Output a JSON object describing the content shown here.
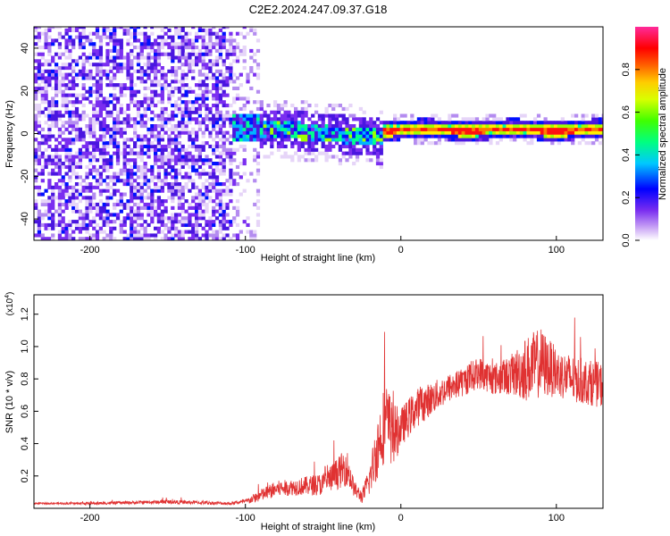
{
  "title": "C2E2.2024.247.09.37.G18",
  "colors": {
    "snr_line": "#e03232",
    "colormap": [
      "#ffffff",
      "#d9c2f5",
      "#8a3cf0",
      "#5a1ee6",
      "#0000ff",
      "#00bfff",
      "#00ff80",
      "#b0ff00",
      "#ffff00",
      "#ff8000",
      "#ff0000",
      "#ff00a0"
    ]
  },
  "chart_data": [
    {
      "type": "heatmap",
      "xlabel": "Height of straight line (km)",
      "ylabel": "Frequency (Hz)",
      "xlim": [
        -236,
        130
      ],
      "ylim": [
        -50,
        50
      ],
      "x_ticks": [
        -200,
        -100,
        0,
        100
      ],
      "y_ticks": [
        -40,
        -20,
        0,
        20,
        40
      ],
      "colorbar": {
        "label": "Normalized spectral amplitude",
        "range": [
          0,
          1
        ],
        "ticks": [
          "0.0",
          "0.2",
          "0.4",
          "0.6",
          "0.8"
        ]
      },
      "description_regions": [
        {
          "x_range": [
            -236,
            -110
          ],
          "freq_range": [
            -50,
            50
          ],
          "amplitude": "low, noise (0.0-0.15)"
        },
        {
          "x_range": [
            -110,
            -12
          ],
          "freq_range": [
            -10,
            12
          ],
          "amplitude": "medium (0.2-0.45), center near 0 Hz"
        },
        {
          "x_range": [
            -12,
            130
          ],
          "freq_range": [
            -3,
            3
          ],
          "amplitude": "high (0.8-1.0), center near 0 Hz"
        }
      ]
    },
    {
      "type": "line",
      "xlabel": "Height of straight line (km)",
      "ylabel": "SNR (10 * v/v)",
      "y_multiplier": "(x10",
      "y_multiplier_exp": "4",
      "y_multiplier_close": ")",
      "xlim": [
        -236,
        130
      ],
      "ylim": [
        0,
        1.32
      ],
      "x_ticks": [
        -200,
        -100,
        0,
        100
      ],
      "y_ticks": [
        "0.2",
        "0.4",
        "0.6",
        "0.8",
        "1.0",
        "1.2"
      ],
      "series": [
        {
          "x": [
            -236,
            -200,
            -150,
            -110,
            -100,
            -90,
            -80,
            -70,
            -60,
            -50,
            -40,
            -35,
            -30,
            -25,
            -20,
            -15,
            -10,
            -5,
            0,
            10,
            20,
            30,
            40,
            50,
            60,
            70,
            80,
            90,
            100,
            110,
            120,
            130
          ],
          "values": [
            0.03,
            0.03,
            0.04,
            0.03,
            0.04,
            0.08,
            0.12,
            0.13,
            0.14,
            0.15,
            0.22,
            0.26,
            0.12,
            0.07,
            0.18,
            0.38,
            0.55,
            0.45,
            0.5,
            0.62,
            0.68,
            0.74,
            0.78,
            0.84,
            0.8,
            0.82,
            0.86,
            0.9,
            0.84,
            0.8,
            0.78,
            0.76
          ],
          "noise": [
            0.005,
            0.008,
            0.012,
            0.01,
            0.015,
            0.04,
            0.05,
            0.05,
            0.06,
            0.07,
            0.1,
            0.12,
            0.05,
            0.04,
            0.1,
            0.2,
            0.25,
            0.2,
            0.12,
            0.12,
            0.1,
            0.09,
            0.09,
            0.1,
            0.1,
            0.12,
            0.2,
            0.22,
            0.15,
            0.15,
            0.14,
            0.14
          ]
        }
      ]
    }
  ]
}
